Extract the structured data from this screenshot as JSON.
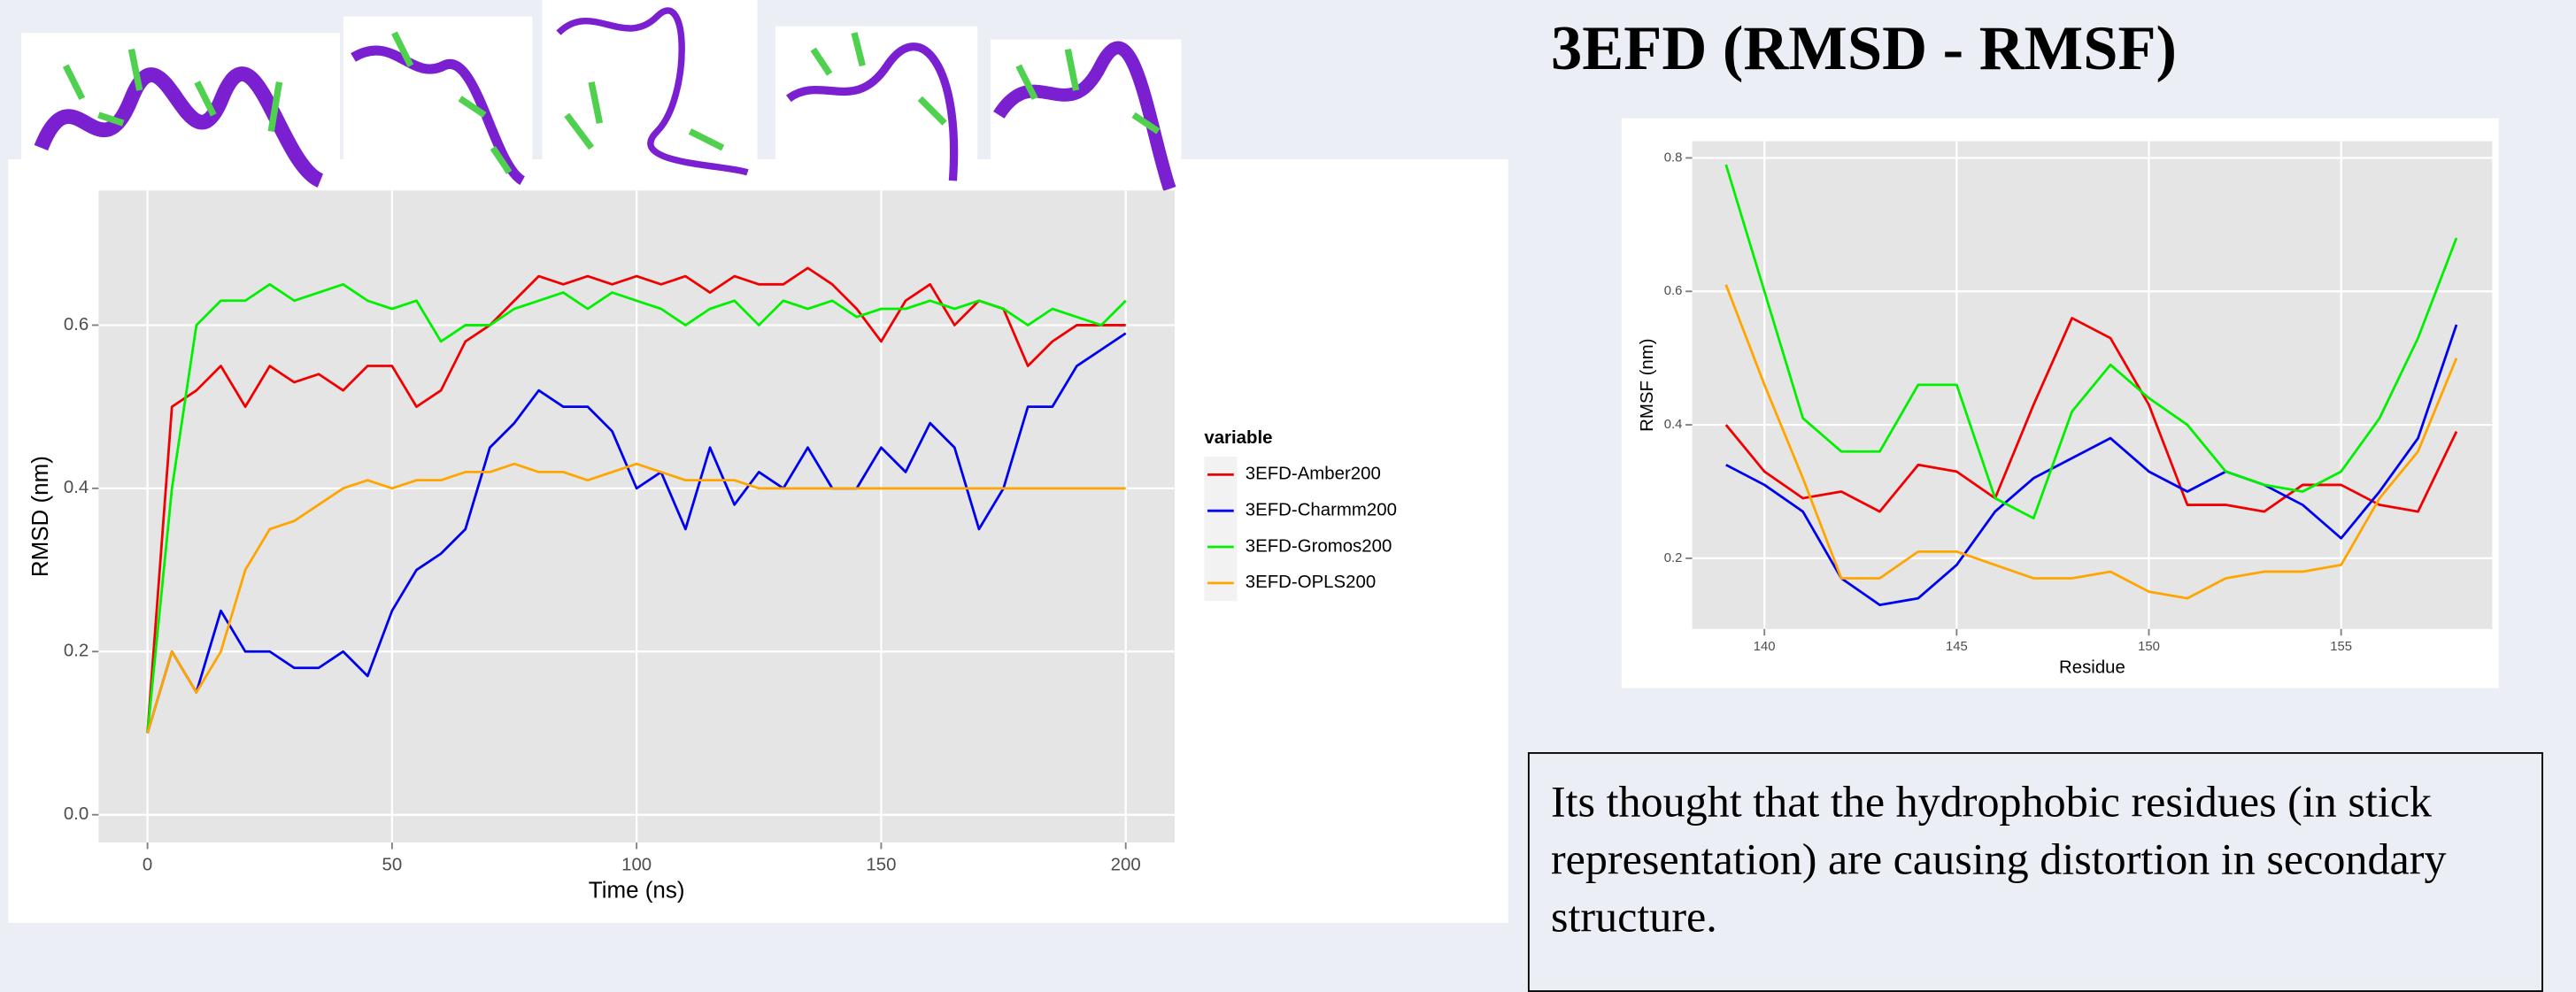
{
  "title": "3EFD (RMSD - RMSF)",
  "note": "Its thought that the hydrophobic residues (in stick representation) are causing distortion in secondary structure.",
  "chart_data": [
    {
      "type": "line",
      "xlabel": "Time (ns)",
      "ylabel": "RMSD (nm)",
      "legend_title": "variable",
      "legend": "right",
      "grid": true,
      "x": [
        0,
        5,
        10,
        15,
        20,
        25,
        30,
        35,
        40,
        45,
        50,
        55,
        60,
        65,
        70,
        75,
        80,
        85,
        90,
        95,
        100,
        105,
        110,
        115,
        120,
        125,
        130,
        135,
        140,
        145,
        150,
        155,
        160,
        165,
        170,
        175,
        180,
        185,
        190,
        195,
        200
      ],
      "xlim": [
        -10,
        210
      ],
      "xticks": [
        0,
        50,
        100,
        150,
        200
      ],
      "ylim": [
        -0.034,
        0.765
      ],
      "yticks": [
        {
          "value": 0,
          "label": "0.0"
        },
        0.2,
        0.4,
        0.6
      ],
      "series": [
        {
          "name": "3EFD-Amber200",
          "color": "#f00000",
          "values": [
            0.1,
            0.5,
            0.52,
            0.55,
            0.5,
            0.55,
            0.53,
            0.54,
            0.52,
            0.55,
            0.55,
            0.5,
            0.52,
            0.58,
            0.6,
            0.63,
            0.66,
            0.65,
            0.66,
            0.65,
            0.66,
            0.65,
            0.66,
            0.64,
            0.66,
            0.65,
            0.65,
            0.67,
            0.65,
            0.62,
            0.58,
            0.63,
            0.65,
            0.6,
            0.63,
            0.62,
            0.55,
            0.58,
            0.6,
            0.6,
            0.6
          ]
        },
        {
          "name": "3EFD-Charmm200",
          "color": "#0000f0",
          "values": [
            0.1,
            0.2,
            0.15,
            0.25,
            0.2,
            0.2,
            0.18,
            0.18,
            0.2,
            0.17,
            0.25,
            0.3,
            0.32,
            0.35,
            0.45,
            0.48,
            0.52,
            0.5,
            0.5,
            0.47,
            0.4,
            0.42,
            0.35,
            0.45,
            0.38,
            0.42,
            0.4,
            0.45,
            0.4,
            0.4,
            0.45,
            0.42,
            0.48,
            0.45,
            0.35,
            0.4,
            0.5,
            0.5,
            0.55,
            0.57,
            0.59
          ]
        },
        {
          "name": "3EFD-Gromos200",
          "color": "#00f000",
          "values": [
            0.1,
            0.4,
            0.6,
            0.63,
            0.63,
            0.65,
            0.63,
            0.64,
            0.65,
            0.63,
            0.62,
            0.63,
            0.58,
            0.6,
            0.6,
            0.62,
            0.63,
            0.64,
            0.62,
            0.64,
            0.63,
            0.62,
            0.6,
            0.62,
            0.63,
            0.6,
            0.63,
            0.62,
            0.63,
            0.61,
            0.62,
            0.62,
            0.63,
            0.62,
            0.63,
            0.62,
            0.6,
            0.62,
            0.61,
            0.6,
            0.63
          ]
        },
        {
          "name": "3EFD-OPLS200",
          "color": "#ffa500",
          "values": [
            0.1,
            0.2,
            0.15,
            0.2,
            0.3,
            0.35,
            0.36,
            0.38,
            0.4,
            0.41,
            0.4,
            0.41,
            0.41,
            0.42,
            0.42,
            0.43,
            0.42,
            0.42,
            0.41,
            0.42,
            0.43,
            0.42,
            0.41,
            0.41,
            0.41,
            0.4,
            0.4,
            0.4,
            0.4,
            0.4,
            0.4,
            0.4,
            0.4,
            0.4,
            0.4,
            0.4,
            0.4,
            0.4,
            0.4,
            0.4,
            0.4
          ]
        }
      ]
    },
    {
      "type": "line",
      "xlabel": "Residue",
      "ylabel": "RMSF (nm)",
      "grid": true,
      "x": [
        139,
        140,
        141,
        142,
        143,
        144,
        145,
        146,
        147,
        148,
        149,
        150,
        151,
        152,
        153,
        154,
        155,
        156,
        157,
        158
      ],
      "xlim": [
        138.12,
        158.93
      ],
      "xticks": [
        140,
        145,
        150,
        155
      ],
      "ylim": [
        0.094,
        0.825
      ],
      "yticks": [
        0.2,
        0.4,
        0.6,
        0.8
      ],
      "series": [
        {
          "color": "#f00000",
          "values": [
            0.4,
            0.33,
            0.29,
            0.3,
            0.27,
            0.34,
            0.33,
            0.29,
            0.43,
            0.56,
            0.53,
            0.43,
            0.28,
            0.28,
            0.27,
            0.31,
            0.31,
            0.28,
            0.27,
            0.39
          ]
        },
        {
          "color": "#0000f0",
          "values": [
            0.34,
            0.31,
            0.27,
            0.17,
            0.13,
            0.14,
            0.19,
            0.27,
            0.32,
            0.35,
            0.38,
            0.33,
            0.3,
            0.33,
            0.31,
            0.28,
            0.23,
            0.3,
            0.38,
            0.55
          ]
        },
        {
          "color": "#00f000",
          "values": [
            0.79,
            0.6,
            0.41,
            0.36,
            0.36,
            0.46,
            0.46,
            0.29,
            0.26,
            0.42,
            0.49,
            0.44,
            0.4,
            0.33,
            0.31,
            0.3,
            0.33,
            0.41,
            0.53,
            0.68
          ]
        },
        {
          "color": "#ffa500",
          "values": [
            0.61,
            0.46,
            0.32,
            0.17,
            0.17,
            0.21,
            0.21,
            0.19,
            0.17,
            0.17,
            0.18,
            0.15,
            0.14,
            0.17,
            0.18,
            0.18,
            0.19,
            0.29,
            0.36,
            0.5
          ]
        }
      ]
    }
  ]
}
